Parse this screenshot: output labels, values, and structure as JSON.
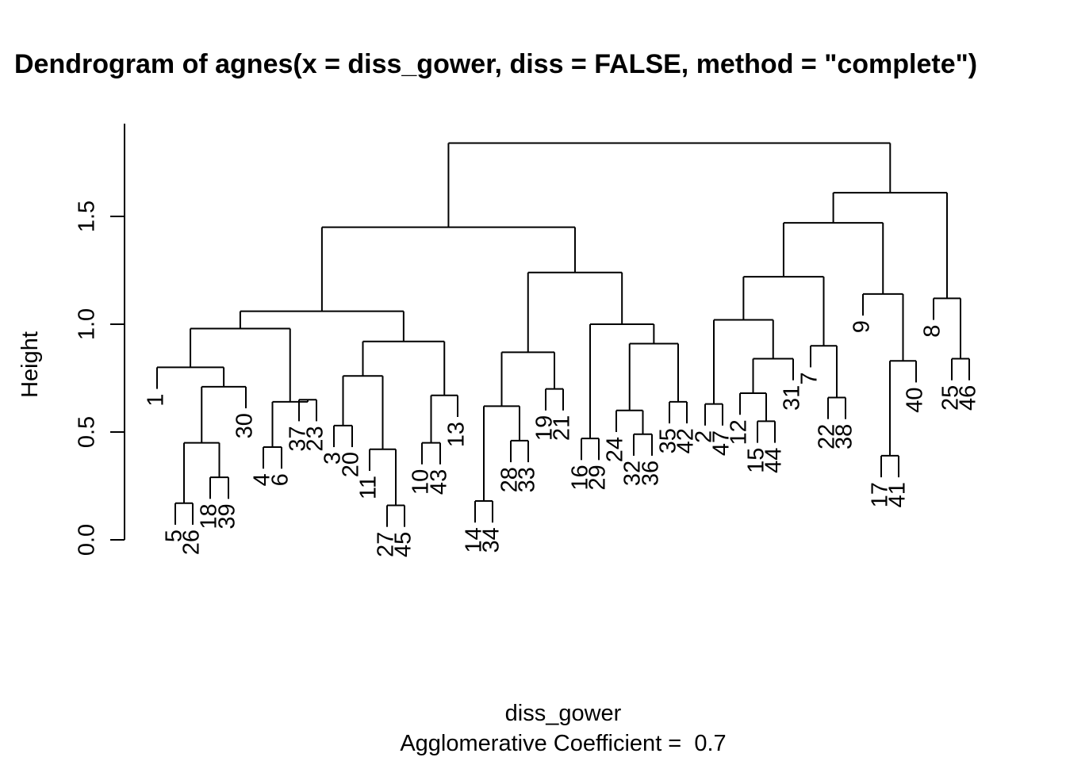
{
  "chart_data": {
    "type": "dendrogram",
    "title": "Dendrogram of  agnes(x = diss_gower, diss = FALSE, method = \"complete\")",
    "xlabel": "diss_gower",
    "subtitle": "Agglomerative Coefficient =  0.7",
    "ylabel": "Height",
    "ylim": [
      0,
      1.85
    ],
    "yticks": [
      "0.0",
      "0.5",
      "1.0",
      "1.5"
    ],
    "leaf_order": [
      "1",
      "5",
      "26",
      "18",
      "39",
      "30",
      "4",
      "6",
      "37",
      "23",
      "3",
      "20",
      "11",
      "27",
      "45",
      "10",
      "43",
      "13",
      "14",
      "34",
      "28",
      "33",
      "19",
      "21",
      "16",
      "29",
      "24",
      "32",
      "36",
      "35",
      "42",
      "2",
      "47",
      "12",
      "15",
      "44",
      "31",
      "7",
      "22",
      "38",
      "9",
      "17",
      "41",
      "40",
      "8",
      "25",
      "46"
    ],
    "tree": [
      "1",
      [
        [
          [
            [
              "5",
              "26",
              0.17
            ],
            [
              "18",
              "39",
              0.29
            ],
            0.45
          ],
          "30",
          0.71
        ],
        0.8
      ],
      0.98
    ],
    "merges": [
      {
        "pair": [
          "5",
          "26"
        ],
        "height": 0.17
      },
      {
        "pair": [
          "18",
          "39"
        ],
        "height": 0.29
      },
      {
        "pair": [
          "4",
          "6"
        ],
        "height": 0.43
      },
      {
        "pair": [
          "3",
          "20"
        ],
        "height": 0.53
      },
      {
        "pair": [
          "27",
          "45"
        ],
        "height": 0.16
      },
      {
        "pair": [
          "10",
          "43"
        ],
        "height": 0.45
      },
      {
        "pair": [
          "14",
          "34"
        ],
        "height": 0.18
      },
      {
        "pair": [
          "28",
          "33"
        ],
        "height": 0.46
      },
      {
        "pair": [
          "19",
          "21"
        ],
        "height": 0.7
      },
      {
        "pair": [
          "16",
          "29"
        ],
        "height": 0.47
      },
      {
        "pair": [
          "32",
          "36"
        ],
        "height": 0.49
      },
      {
        "pair": [
          "35",
          "42"
        ],
        "height": 0.64
      },
      {
        "pair": [
          "2",
          "47"
        ],
        "height": 0.63
      },
      {
        "pair": [
          "15",
          "44"
        ],
        "height": 0.55
      },
      {
        "pair": [
          "22",
          "38"
        ],
        "height": 0.66
      },
      {
        "pair": [
          "17",
          "41"
        ],
        "height": 0.39
      },
      {
        "pair": [
          "25",
          "46"
        ],
        "height": 0.84
      },
      {
        "pair": [
          "37",
          "23"
        ],
        "height": 0.65
      },
      {
        "pair": [
          "12",
          "15-44"
        ],
        "height": 0.68
      },
      {
        "pair": [
          "11",
          "27-45"
        ],
        "height": 0.42
      },
      {
        "pair": [
          "31",
          "12-15-44"
        ],
        "height": 0.84
      },
      {
        "pair": [
          "7",
          "22-38"
        ],
        "height": 0.9
      },
      {
        "pair": [
          "17-41",
          "40"
        ],
        "height": 0.83
      },
      {
        "pair": [
          "9",
          "17-41-40"
        ],
        "height": 1.14
      },
      {
        "pair": [
          "8",
          "25-46"
        ],
        "height": 1.12
      }
    ]
  }
}
